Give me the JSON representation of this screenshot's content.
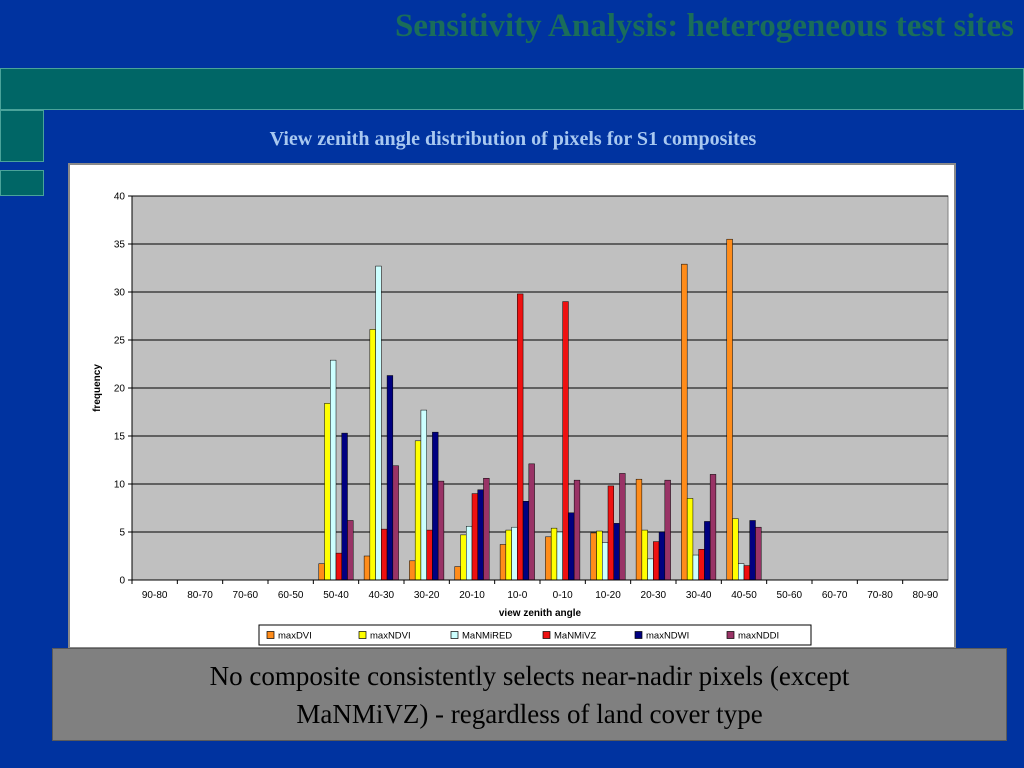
{
  "slide": {
    "title": "Sensitivity Analysis: heterogeneous test sites",
    "chart_heading": "View zenith angle distribution of pixels for S1 composites",
    "caption_line1": "No composite consistently selects near-nadir pixels (except",
    "caption_line2": "MaNMiVZ)  - regardless of land cover type"
  },
  "colors": {
    "background": "#0033a0",
    "accent_teal": "#006666",
    "plot_area": "#c0c0c0"
  },
  "chart_data": {
    "type": "bar",
    "title": "",
    "xlabel": "view zenith angle",
    "ylabel": "frequency",
    "ylim": [
      0,
      40
    ],
    "yticks": [
      0,
      5,
      10,
      15,
      20,
      25,
      30,
      35,
      40
    ],
    "grid": true,
    "legend_position": "bottom",
    "categories": [
      "90-80",
      "80-70",
      "70-60",
      "60-50",
      "50-40",
      "40-30",
      "30-20",
      "20-10",
      "10-0",
      "0-10",
      "10-20",
      "20-30",
      "30-40",
      "40-50",
      "50-60",
      "60-70",
      "70-80",
      "80-90"
    ],
    "series": [
      {
        "name": "maxDVI",
        "color": "#ff8c1a",
        "values": [
          0,
          0,
          0,
          0,
          1.7,
          2.5,
          2.0,
          1.4,
          3.7,
          4.5,
          4.9,
          10.5,
          32.9,
          35.5,
          0,
          0,
          0,
          0
        ]
      },
      {
        "name": "maxNDVI",
        "color": "#ffff00",
        "values": [
          0,
          0,
          0,
          0,
          18.4,
          26.1,
          14.5,
          4.7,
          5.2,
          5.4,
          5.1,
          5.2,
          8.5,
          6.4,
          0,
          0,
          0,
          0
        ]
      },
      {
        "name": "MaNMiRED",
        "color": "#ccffff",
        "values": [
          0,
          0,
          0,
          0,
          22.9,
          32.7,
          17.7,
          5.6,
          5.5,
          5.0,
          3.9,
          2.2,
          2.6,
          1.7,
          0,
          0,
          0,
          0
        ]
      },
      {
        "name": "MaNMiVZ",
        "color": "#ee1111",
        "values": [
          0,
          0,
          0,
          0,
          2.8,
          5.3,
          5.2,
          9.0,
          29.8,
          29.0,
          9.8,
          4.0,
          3.2,
          1.5,
          0,
          0,
          0,
          0
        ]
      },
      {
        "name": "maxNDWI",
        "color": "#000080",
        "values": [
          0,
          0,
          0,
          0,
          15.3,
          21.3,
          15.4,
          9.4,
          8.2,
          7.0,
          5.9,
          5.0,
          6.1,
          6.2,
          0,
          0,
          0,
          0
        ]
      },
      {
        "name": "maxNDDI",
        "color": "#993366",
        "values": [
          0,
          0,
          0,
          0,
          6.2,
          11.9,
          10.3,
          10.6,
          12.1,
          10.4,
          11.1,
          10.4,
          11.0,
          5.5,
          0,
          0,
          0,
          0
        ]
      }
    ]
  }
}
